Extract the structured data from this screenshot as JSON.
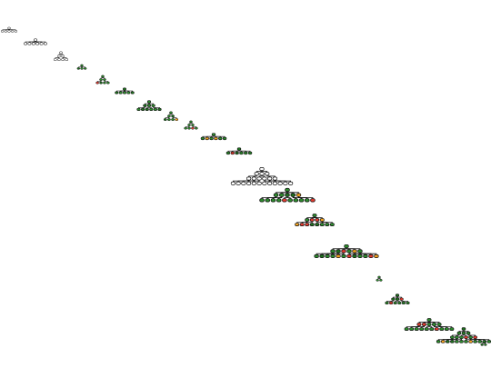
{
  "diagram": {
    "type": "tree-sequence",
    "background": "#ffffff",
    "colors": {
      "black": "#111111",
      "green": "#2e8b2e",
      "dark_green": "#1f6f1f",
      "red": "#e03a2f",
      "orange": "#f0a020",
      "outline": "#111111"
    },
    "trees": [
      {
        "id": "t1",
        "palette": "black",
        "depth": 2,
        "branching": [
          5
        ]
      },
      {
        "id": "t2",
        "palette": "black",
        "depth": 2,
        "branching": [
          6
        ]
      },
      {
        "id": "t3",
        "palette": "black",
        "depth": 3,
        "branching": [
          2,
          2
        ]
      },
      {
        "id": "t4",
        "palette": "mixed",
        "depth": 2,
        "branching": [
          3
        ]
      },
      {
        "id": "t5",
        "palette": "mixed",
        "depth": 3,
        "branching": [
          2,
          2
        ]
      },
      {
        "id": "t6",
        "palette": "green",
        "depth": 2,
        "branching": [
          5
        ]
      },
      {
        "id": "t7",
        "palette": "green",
        "depth": 3,
        "branching": [
          3,
          2
        ]
      },
      {
        "id": "t8",
        "palette": "mixed",
        "depth": 3,
        "branching": [
          2,
          2
        ]
      },
      {
        "id": "t9",
        "palette": "mixed",
        "depth": 3,
        "branching": [
          2,
          2
        ]
      },
      {
        "id": "t10",
        "palette": "mixed",
        "depth": 2,
        "branching": [
          6
        ]
      },
      {
        "id": "t11",
        "palette": "mixed",
        "depth": 2,
        "branching": [
          6
        ]
      },
      {
        "id": "t12",
        "palette": "black",
        "depth": 4,
        "branching": [
          3,
          2,
          2
        ]
      },
      {
        "id": "t13",
        "palette": "mixed",
        "depth": 3,
        "branching": [
          5,
          2
        ]
      },
      {
        "id": "t14",
        "palette": "mixed",
        "depth": 3,
        "branching": [
          4,
          2
        ]
      },
      {
        "id": "t15",
        "palette": "mixed",
        "depth": 3,
        "branching": [
          6,
          2
        ]
      },
      {
        "id": "t16",
        "palette": "green",
        "depth": 2,
        "branching": [
          2
        ]
      },
      {
        "id": "t17",
        "palette": "mixed",
        "depth": 3,
        "branching": [
          3,
          2
        ]
      },
      {
        "id": "t18",
        "palette": "mixed",
        "depth": 3,
        "branching": [
          5,
          2
        ]
      },
      {
        "id": "t19",
        "palette": "mixed",
        "depth": 4,
        "branching": [
          3,
          2,
          2
        ]
      },
      {
        "id": "t20",
        "palette": "green",
        "depth": 2,
        "branching": [
          2
        ]
      }
    ]
  }
}
